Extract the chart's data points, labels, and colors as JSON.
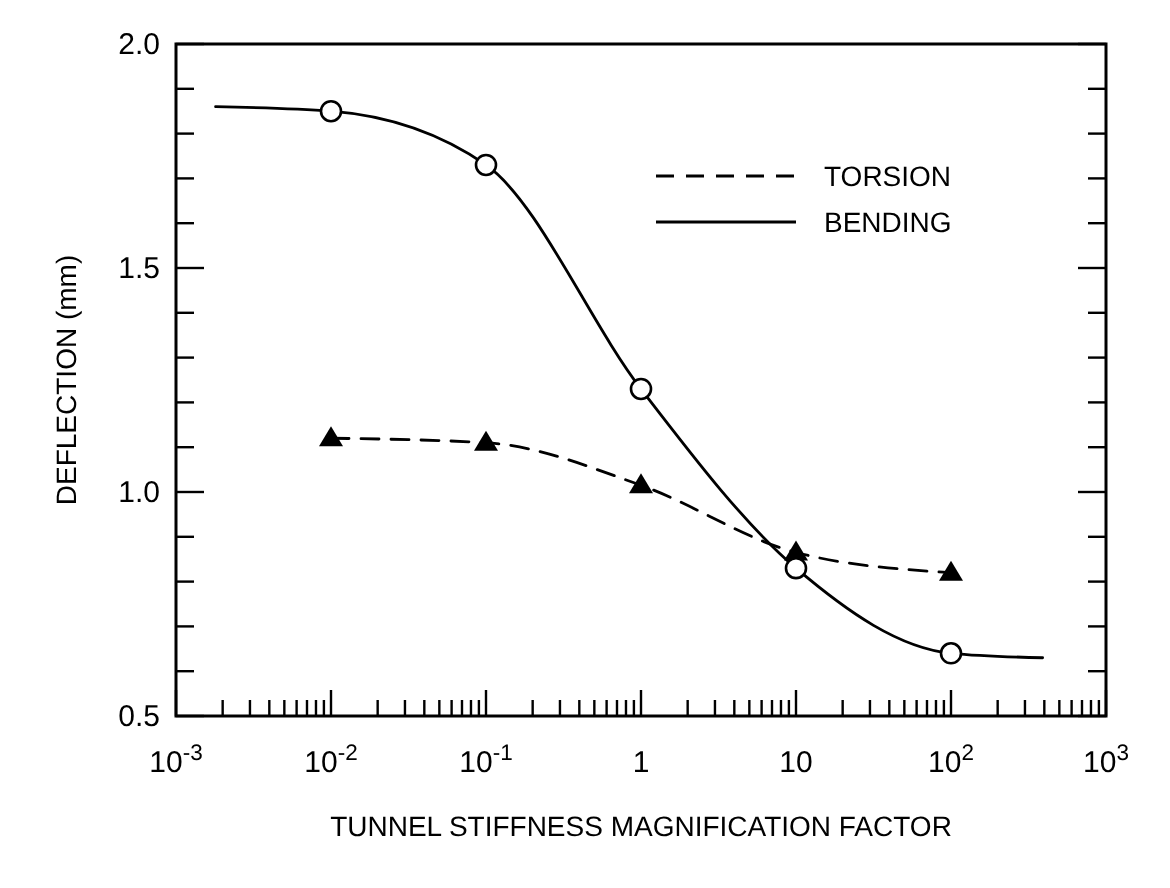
{
  "chart_data": {
    "type": "line",
    "xlabel": "TUNNEL STIFFNESS MAGNIFICATION FACTOR",
    "ylabel": "DEFLECTION (mm)",
    "log": "x",
    "xlim": [
      0.001,
      1000
    ],
    "ylim": [
      0.5,
      2.0
    ],
    "xticks": [
      {
        "value": 0.001,
        "label": "10$^{-3}$"
      },
      {
        "value": 0.002,
        "label": null
      },
      {
        "value": 0.003,
        "label": null
      },
      {
        "value": 0.004,
        "label": null
      },
      {
        "value": 0.005,
        "label": null
      },
      {
        "value": 0.006,
        "label": null
      },
      {
        "value": 0.007,
        "label": null
      },
      {
        "value": 0.008,
        "label": null
      },
      {
        "value": 0.009,
        "label": null
      },
      {
        "value": 0.01,
        "label": "10$^{-2}$"
      },
      {
        "value": 0.02,
        "label": null
      },
      {
        "value": 0.03,
        "label": null
      },
      {
        "value": 0.04,
        "label": null
      },
      {
        "value": 0.05,
        "label": null
      },
      {
        "value": 0.06,
        "label": null
      },
      {
        "value": 0.07,
        "label": null
      },
      {
        "value": 0.08,
        "label": null
      },
      {
        "value": 0.09,
        "label": null
      },
      {
        "value": 0.1,
        "label": "10$^{-1}$"
      },
      {
        "value": 0.2,
        "label": null
      },
      {
        "value": 0.3,
        "label": null
      },
      {
        "value": 0.4,
        "label": null
      },
      {
        "value": 0.5,
        "label": null
      },
      {
        "value": 0.6,
        "label": null
      },
      {
        "value": 0.7,
        "label": null
      },
      {
        "value": 0.8,
        "label": null
      },
      {
        "value": 0.9,
        "label": null
      },
      {
        "value": 1,
        "label": "1"
      },
      {
        "value": 2,
        "label": null
      },
      {
        "value": 3,
        "label": null
      },
      {
        "value": 4,
        "label": null
      },
      {
        "value": 5,
        "label": null
      },
      {
        "value": 6,
        "label": null
      },
      {
        "value": 7,
        "label": null
      },
      {
        "value": 8,
        "label": null
      },
      {
        "value": 9,
        "label": null
      },
      {
        "value": 10,
        "label": "10"
      },
      {
        "value": 20,
        "label": null
      },
      {
        "value": 30,
        "label": null
      },
      {
        "value": 40,
        "label": null
      },
      {
        "value": 50,
        "label": null
      },
      {
        "value": 60,
        "label": null
      },
      {
        "value": 70,
        "label": null
      },
      {
        "value": 80,
        "label": null
      },
      {
        "value": 90,
        "label": null
      },
      {
        "value": 100,
        "label": "10$^{2}$"
      },
      {
        "value": 200,
        "label": null
      },
      {
        "value": 300,
        "label": null
      },
      {
        "value": 400,
        "label": null
      },
      {
        "value": 500,
        "label": null
      },
      {
        "value": 600,
        "label": null
      },
      {
        "value": 700,
        "label": null
      },
      {
        "value": 800,
        "label": null
      },
      {
        "value": 900,
        "label": null
      },
      {
        "value": 1000,
        "label": "10$^{3}$"
      }
    ],
    "yticks": [
      {
        "value": 0.5,
        "label": "0.5"
      },
      {
        "value": 0.6,
        "label": null
      },
      {
        "value": 0.7,
        "label": null
      },
      {
        "value": 0.8,
        "label": null
      },
      {
        "value": 0.9,
        "label": null
      },
      {
        "value": 1,
        "label": "1.0"
      },
      {
        "value": 1.1,
        "label": null
      },
      {
        "value": 1.2,
        "label": null
      },
      {
        "value": 1.3,
        "label": null
      },
      {
        "value": 1.4,
        "label": null
      },
      {
        "value": 1.5,
        "label": "1.5"
      },
      {
        "value": 1.6,
        "label": null
      },
      {
        "value": 1.7,
        "label": null
      },
      {
        "value": 1.8,
        "label": null
      },
      {
        "value": 1.9,
        "label": null
      },
      {
        "value": 2,
        "label": "2.0"
      }
    ],
    "grid": false,
    "legend": "top right",
    "series": [
      {
        "name": "TORSION",
        "color": "#000000",
        "line_style": "dashed",
        "marker": "triangle",
        "x": [
          0.01,
          0.1,
          1,
          10,
          100
        ],
        "values": [
          1.12,
          1.11,
          1.015,
          0.865,
          0.82
        ]
      },
      {
        "name": "BENDING",
        "color": "#000000",
        "line_style": "solid",
        "marker": "none",
        "x": [
          0.0018,
          0.01,
          0.1,
          1,
          10,
          100,
          390
        ],
        "values": [
          1.86,
          1.85,
          1.73,
          1.23,
          0.83,
          0.64,
          0.63
        ]
      },
      {
        "color": "#000000",
        "type": "scatter",
        "marker": "circle",
        "x": [
          0.01,
          0.1,
          1,
          10,
          100
        ],
        "values": [
          1.85,
          1.73,
          1.23,
          0.83,
          0.64
        ]
      }
    ]
  }
}
